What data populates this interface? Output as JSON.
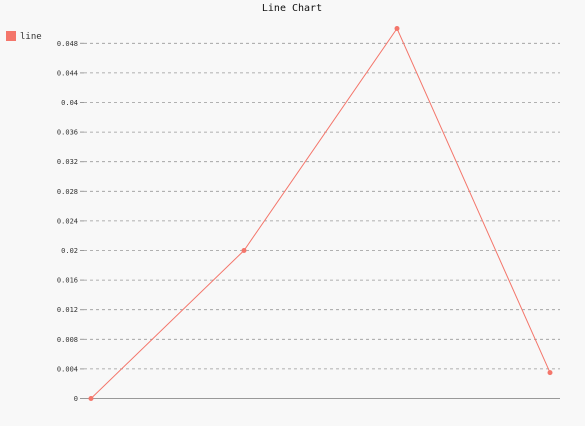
{
  "chart_data": {
    "type": "line",
    "title": "Line Chart",
    "xlabel": "",
    "ylabel": "",
    "ylim": [
      0,
      0.05
    ],
    "grid": true,
    "legend_placement": "top-left",
    "y_ticks": [
      "0",
      "0.004",
      "0.008",
      "0.012",
      "0.016",
      "0.02",
      "0.024",
      "0.028",
      "0.032",
      "0.036",
      "0.04",
      "0.044",
      "0.048"
    ],
    "x": [
      0,
      1,
      2,
      3
    ],
    "series": [
      {
        "name": "line",
        "color": "#f4766b",
        "values": [
          0,
          0.02,
          0.05,
          0.0035
        ]
      }
    ]
  }
}
